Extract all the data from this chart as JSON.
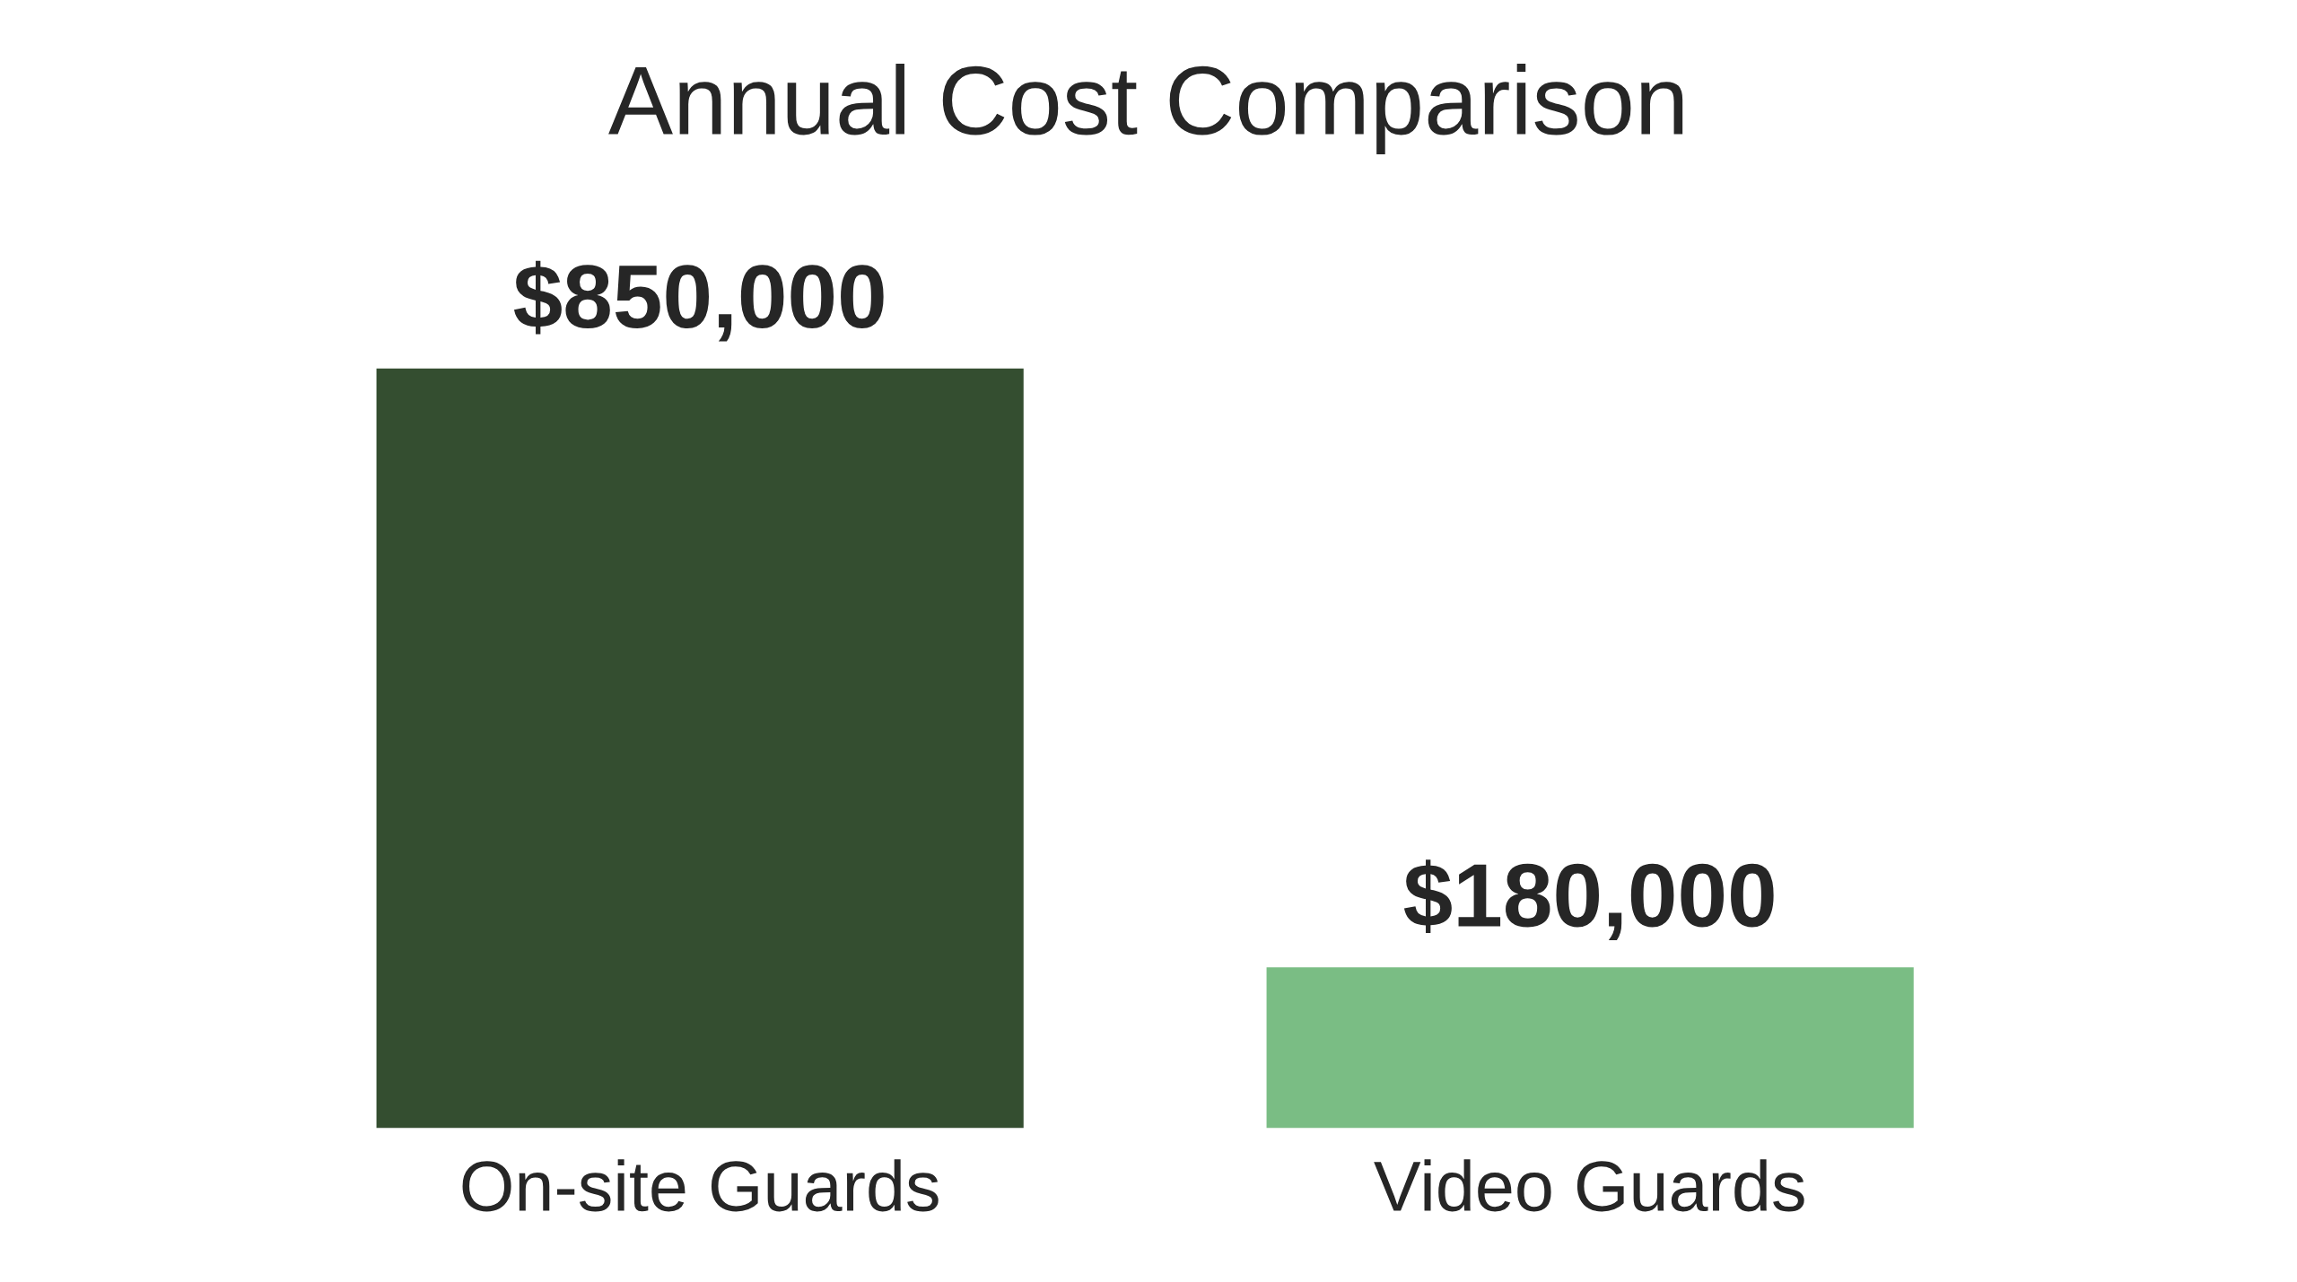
{
  "chart_data": {
    "type": "bar",
    "title": "Annual Cost Comparison",
    "categories": [
      "On-site Guards",
      "Video Guards"
    ],
    "values": [
      850000,
      180000
    ],
    "colors": [
      "#344e30",
      "#7abd84"
    ],
    "value_labels": [
      "$850,000",
      "$180,000"
    ],
    "grid": false,
    "legend": false
  }
}
